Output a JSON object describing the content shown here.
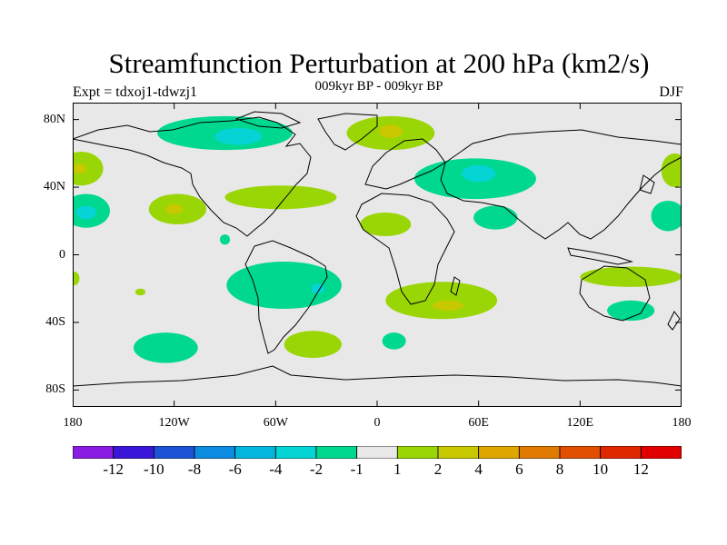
{
  "title": "Streamfunction Perturbation at 200 hPa (km2/s)",
  "subtitle": "009kyr BP - 009kyr BP",
  "left_label": "Expt = tdxoj1-tdwzj1",
  "right_label": "DJF",
  "map": {
    "lat_ticks": [
      "80N",
      "40N",
      "0",
      "40S",
      "80S"
    ],
    "lon_ticks": [
      "180",
      "120W",
      "60W",
      "0",
      "60E",
      "120E",
      "180"
    ],
    "background_color": "#e8e8e8"
  },
  "colorbar": {
    "colors": [
      "#8a1be2",
      "#3a17d8",
      "#1c52d6",
      "#0d8be0",
      "#03b6dc",
      "#05d4d4",
      "#00d88f",
      "#e8e8e8",
      "#9ad605",
      "#c8c800",
      "#e0a600",
      "#e07a00",
      "#e05000",
      "#e02800",
      "#e00000"
    ],
    "labels": [
      "-12",
      "-10",
      "-8",
      "-6",
      "-4",
      "-2",
      "-1",
      "1",
      "2",
      "4",
      "6",
      "8",
      "10",
      "12"
    ]
  },
  "fields": [
    {
      "name": "n-atlantic-canada-low",
      "color": "#00d88f",
      "lon": -90,
      "lat": 72,
      "rx": 40,
      "ry": 10
    },
    {
      "name": "canada-core",
      "color": "#05d4d4",
      "lon": -82,
      "lat": 70,
      "rx": 14,
      "ry": 5
    },
    {
      "name": "greenland-high",
      "color": "#9ad605",
      "lon": 8,
      "lat": 72,
      "rx": 26,
      "ry": 10
    },
    {
      "name": "greenland-core",
      "color": "#c8c800",
      "lon": 8,
      "lat": 73,
      "rx": 7,
      "ry": 4
    },
    {
      "name": "asia-low",
      "color": "#00d88f",
      "lon": 58,
      "lat": 45,
      "rx": 36,
      "ry": 12
    },
    {
      "name": "asia-core",
      "color": "#05d4d4",
      "lon": 60,
      "lat": 48,
      "rx": 10,
      "ry": 5
    },
    {
      "name": "pacific-w-high",
      "color": "#9ad605",
      "lon": -175,
      "lat": 51,
      "rx": 13,
      "ry": 10
    },
    {
      "name": "pacific-w-core",
      "color": "#c8c800",
      "lon": -176,
      "lat": 51,
      "rx": 4,
      "ry": 3
    },
    {
      "name": "pacific-e-high",
      "color": "#9ad605",
      "lon": 176,
      "lat": 50,
      "rx": 8,
      "ry": 10
    },
    {
      "name": "atlantic-high",
      "color": "#9ad605",
      "lon": -57,
      "lat": 34,
      "rx": 33,
      "ry": 7
    },
    {
      "name": "mexico-high",
      "color": "#9ad605",
      "lon": -118,
      "lat": 27,
      "rx": 17,
      "ry": 9
    },
    {
      "name": "mexico-core",
      "color": "#c8c800",
      "lon": -120,
      "lat": 27,
      "rx": 5,
      "ry": 3
    },
    {
      "name": "africa-high",
      "color": "#9ad605",
      "lon": 5,
      "lat": 18,
      "rx": 15,
      "ry": 7
    },
    {
      "name": "pacific-tropical-low",
      "color": "#00d88f",
      "lon": -172,
      "lat": 26,
      "rx": 14,
      "ry": 10
    },
    {
      "name": "pacific-tropical-core",
      "color": "#05d4d4",
      "lon": -172,
      "lat": 25,
      "rx": 6,
      "ry": 4
    },
    {
      "name": "india-low",
      "color": "#00d88f",
      "lon": 70,
      "lat": 22,
      "rx": 13,
      "ry": 7
    },
    {
      "name": "pacific-e-low",
      "color": "#00d88f",
      "lon": 172,
      "lat": 23,
      "rx": 10,
      "ry": 9
    },
    {
      "name": "small-low",
      "color": "#00d88f",
      "lon": -90,
      "lat": 9,
      "rx": 3,
      "ry": 3
    },
    {
      "name": "australia-high",
      "color": "#9ad605",
      "lon": 150,
      "lat": -13,
      "rx": 30,
      "ry": 6
    },
    {
      "name": "south-america-low",
      "color": "#00d88f",
      "lon": -55,
      "lat": -18,
      "rx": 34,
      "ry": 14
    },
    {
      "name": "south-america-core",
      "color": "#05d4d4",
      "lon": -35,
      "lat": -20,
      "rx": 4,
      "ry": 3
    },
    {
      "name": "pacific-s-high",
      "color": "#9ad605",
      "lon": -140,
      "lat": -22,
      "rx": 3,
      "ry": 2
    },
    {
      "name": "edge-w-high",
      "color": "#9ad605",
      "lon": -179,
      "lat": -14,
      "rx": 3,
      "ry": 4
    },
    {
      "name": "south-africa-high",
      "color": "#9ad605",
      "lon": 38,
      "lat": -27,
      "rx": 33,
      "ry": 11
    },
    {
      "name": "south-africa-core",
      "color": "#c8c800",
      "lon": 42,
      "lat": -30,
      "rx": 9,
      "ry": 3
    },
    {
      "name": "south-pacific-low",
      "color": "#00d88f",
      "lon": -125,
      "lat": -55,
      "rx": 19,
      "ry": 9
    },
    {
      "name": "south-atlantic-high",
      "color": "#9ad605",
      "lon": -38,
      "lat": -53,
      "rx": 17,
      "ry": 8
    },
    {
      "name": "south-indian-low",
      "color": "#00d88f",
      "lon": 10,
      "lat": -51,
      "rx": 7,
      "ry": 5
    },
    {
      "name": "australia-s-low",
      "color": "#00d88f",
      "lon": 150,
      "lat": -33,
      "rx": 14,
      "ry": 6
    }
  ]
}
